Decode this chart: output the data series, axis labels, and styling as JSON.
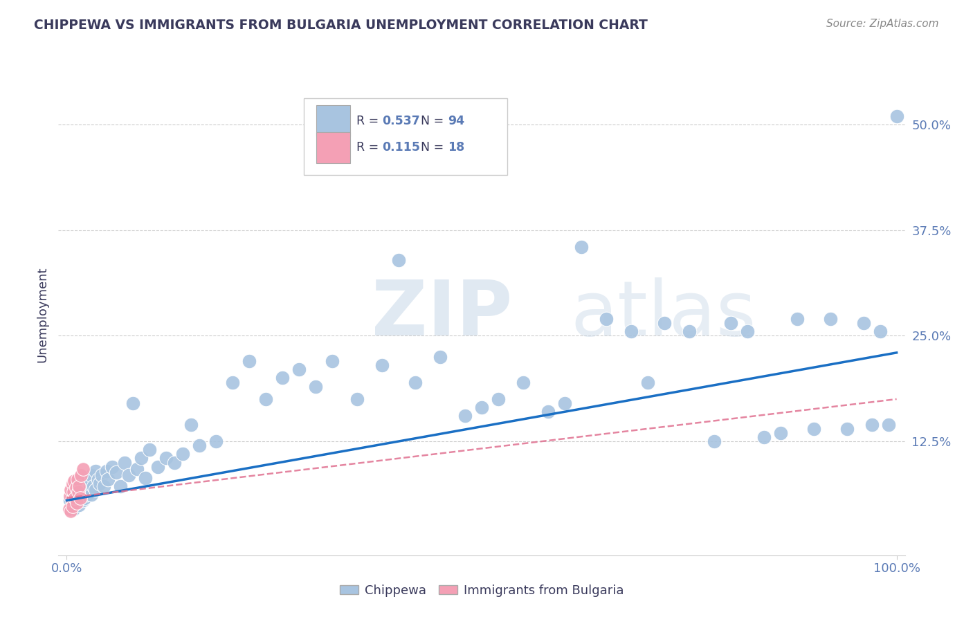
{
  "title": "CHIPPEWA VS IMMIGRANTS FROM BULGARIA UNEMPLOYMENT CORRELATION CHART",
  "source": "Source: ZipAtlas.com",
  "ylabel": "Unemployment",
  "watermark": "ZIPatlas",
  "legend_r1_label": "R = ",
  "legend_r1_val": "0.537",
  "legend_n1_label": "N = ",
  "legend_n1_val": "94",
  "legend_r2_label": "R = ",
  "legend_r2_val": "0.115",
  "legend_n2_label": "N = ",
  "legend_n2_val": "18",
  "blue_color": "#a8c4e0",
  "pink_color": "#f4a0b5",
  "blue_line_color": "#1a6fc4",
  "pink_line_color": "#e07090",
  "title_color": "#3a3a5c",
  "axis_label_color": "#5a7ab5",
  "background_color": "#ffffff",
  "chip_x": [
    0.004,
    0.005,
    0.006,
    0.007,
    0.008,
    0.008,
    0.009,
    0.01,
    0.01,
    0.011,
    0.012,
    0.013,
    0.014,
    0.015,
    0.015,
    0.016,
    0.017,
    0.018,
    0.019,
    0.02,
    0.02,
    0.021,
    0.022,
    0.023,
    0.025,
    0.025,
    0.027,
    0.028,
    0.03,
    0.03,
    0.032,
    0.035,
    0.035,
    0.038,
    0.04,
    0.042,
    0.045,
    0.048,
    0.05,
    0.055,
    0.06,
    0.065,
    0.07,
    0.075,
    0.08,
    0.085,
    0.09,
    0.095,
    0.1,
    0.11,
    0.12,
    0.13,
    0.14,
    0.15,
    0.16,
    0.18,
    0.2,
    0.22,
    0.24,
    0.26,
    0.28,
    0.3,
    0.32,
    0.35,
    0.38,
    0.4,
    0.42,
    0.45,
    0.48,
    0.5,
    0.52,
    0.55,
    0.58,
    0.6,
    0.62,
    0.65,
    0.68,
    0.7,
    0.72,
    0.75,
    0.78,
    0.8,
    0.82,
    0.84,
    0.86,
    0.88,
    0.9,
    0.92,
    0.94,
    0.96,
    0.97,
    0.98,
    0.99,
    1.0
  ],
  "chip_y": [
    0.055,
    0.045,
    0.06,
    0.05,
    0.065,
    0.045,
    0.055,
    0.07,
    0.05,
    0.06,
    0.055,
    0.065,
    0.058,
    0.075,
    0.05,
    0.068,
    0.058,
    0.072,
    0.062,
    0.055,
    0.068,
    0.058,
    0.065,
    0.075,
    0.062,
    0.082,
    0.07,
    0.078,
    0.062,
    0.085,
    0.072,
    0.068,
    0.09,
    0.08,
    0.075,
    0.085,
    0.072,
    0.09,
    0.08,
    0.095,
    0.088,
    0.072,
    0.1,
    0.085,
    0.17,
    0.092,
    0.105,
    0.082,
    0.115,
    0.095,
    0.105,
    0.1,
    0.11,
    0.145,
    0.12,
    0.125,
    0.195,
    0.22,
    0.175,
    0.2,
    0.21,
    0.19,
    0.22,
    0.175,
    0.215,
    0.34,
    0.195,
    0.225,
    0.155,
    0.165,
    0.175,
    0.195,
    0.16,
    0.17,
    0.355,
    0.27,
    0.255,
    0.195,
    0.265,
    0.255,
    0.125,
    0.265,
    0.255,
    0.13,
    0.135,
    0.27,
    0.14,
    0.27,
    0.14,
    0.265,
    0.145,
    0.255,
    0.145,
    0.51
  ],
  "bulg_x": [
    0.003,
    0.004,
    0.005,
    0.005,
    0.006,
    0.007,
    0.007,
    0.008,
    0.009,
    0.01,
    0.011,
    0.012,
    0.013,
    0.014,
    0.015,
    0.016,
    0.017,
    0.02
  ],
  "bulg_y": [
    0.045,
    0.06,
    0.042,
    0.068,
    0.055,
    0.075,
    0.048,
    0.065,
    0.078,
    0.058,
    0.07,
    0.052,
    0.08,
    0.065,
    0.072,
    0.058,
    0.085,
    0.092
  ],
  "blue_trend": [
    0.0,
    1.0,
    0.055,
    0.23
  ],
  "pink_trend": [
    0.0,
    1.0,
    0.058,
    0.175
  ],
  "ylim": [
    -0.01,
    0.56
  ],
  "xlim": [
    -0.01,
    1.01
  ]
}
